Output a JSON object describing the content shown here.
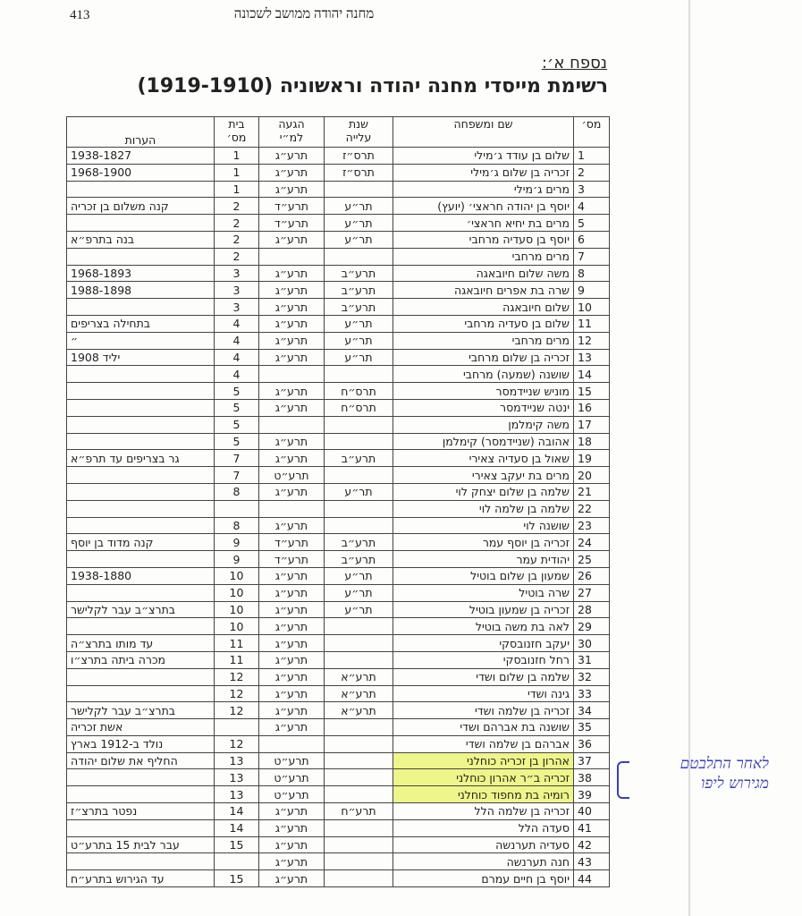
{
  "page_number": "413",
  "running_header": "מחנה יהודה ממושב לשכונה",
  "appendix_label": "נספח א׳:",
  "title": "רשימת מייסדי מחנה יהודה וראשוניה (1919-1910)",
  "table": {
    "headers": {
      "num": "מס׳",
      "name": "שם ומשפחה",
      "aliya_l1": "שנת",
      "aliya_l2": "עלייה",
      "arrival_l1": "הגעה",
      "arrival_l2": "למ״י",
      "house_l1": "בית",
      "house_l2": "מס׳",
      "notes": "הערות"
    },
    "rows": [
      {
        "num": "1",
        "name": "שלום בן עודד ג׳מילי",
        "aliya": "תרס״ז",
        "arrival": "תרע״ג",
        "house": "1",
        "notes": "1938-1827"
      },
      {
        "num": "2",
        "name": "זכריה בן שלום ג׳מילי",
        "aliya": "תרס״ז",
        "arrival": "תרע״ג",
        "house": "1",
        "notes": "1968-1900"
      },
      {
        "num": "3",
        "name": "מרים ג׳מילי",
        "aliya": "",
        "arrival": "תרע״ג",
        "house": "1",
        "notes": ""
      },
      {
        "num": "4",
        "name": "יוסף בן יהודה חראצי׳ (יועץ)",
        "aliya": "תר״ע",
        "arrival": "תרע״ד",
        "house": "2",
        "notes": "קנה משלום בן זכריה"
      },
      {
        "num": "5",
        "name": "מרים בת יחיא חראצי׳",
        "aliya": "תר״ע",
        "arrival": "תרע״ד",
        "house": "2",
        "notes": ""
      },
      {
        "num": "6",
        "name": "יוסף בן סעדיה מרחבי",
        "aliya": "תר״ע",
        "arrival": "תרע״ג",
        "house": "2",
        "notes": "בנה בתרפ״א"
      },
      {
        "num": "7",
        "name": "מרים מרחבי",
        "aliya": "",
        "arrival": "",
        "house": "2",
        "notes": ""
      },
      {
        "num": "8",
        "name": "משה שלום חיובאגה",
        "aliya": "תרע״ב",
        "arrival": "תרע״ג",
        "house": "3",
        "notes": "1968-1893"
      },
      {
        "num": "9",
        "name": "שרה בת אפרים חיובאגה",
        "aliya": "תרע״ב",
        "arrival": "תרע״ג",
        "house": "3",
        "notes": "1988-1898"
      },
      {
        "num": "10",
        "name": "שלום חיובאגה",
        "aliya": "תרע״ב",
        "arrival": "תרע״ג",
        "house": "3",
        "notes": ""
      },
      {
        "num": "11",
        "name": "שלום בן סעדיה מרחבי",
        "aliya": "תר״ע",
        "arrival": "תרע״ג",
        "house": "4",
        "notes": "בתחילה בצריפים"
      },
      {
        "num": "12",
        "name": "מרים מרחבי",
        "aliya": "תר״ע",
        "arrival": "תרע״ג",
        "house": "4",
        "notes": "״"
      },
      {
        "num": "13",
        "name": "זכריה בן שלום מרחבי",
        "aliya": "תר״ע",
        "arrival": "תרע״ג",
        "house": "4",
        "notes": "יליד 1908"
      },
      {
        "num": "14",
        "name": "שושנה (שמעה) מרחבי",
        "aliya": "",
        "arrival": "",
        "house": "4",
        "notes": ""
      },
      {
        "num": "15",
        "name": "מוניש שניידמסר",
        "aliya": "תרס״ח",
        "arrival": "תרע״ג",
        "house": "5",
        "notes": ""
      },
      {
        "num": "16",
        "name": "ינטה שניידמסר",
        "aliya": "תרס״ח",
        "arrival": "תרע״ג",
        "house": "5",
        "notes": ""
      },
      {
        "num": "17",
        "name": "משה קימלמן",
        "aliya": "",
        "arrival": "",
        "house": "5",
        "notes": ""
      },
      {
        "num": "18",
        "name": "אהובה (שניידמסר) קימלמן",
        "aliya": "",
        "arrival": "תרע״ג",
        "house": "5",
        "notes": ""
      },
      {
        "num": "19",
        "name": "שאול בן סעדיה צאירי",
        "aliya": "תרע״ב",
        "arrival": "תרע״ג",
        "house": "7",
        "notes": "גר בצריפים עד תרפ״א"
      },
      {
        "num": "20",
        "name": "מרים בת יעקב צאירי",
        "aliya": "",
        "arrival": "תרע״ט",
        "house": "7",
        "notes": ""
      },
      {
        "num": "21",
        "name": "שלמה בן שלום יצחק לוי",
        "aliya": "תר״ע",
        "arrival": "תרע״ג",
        "house": "8",
        "notes": ""
      },
      {
        "num": "22",
        "name": "שלמה בן שלמה לוי",
        "aliya": "",
        "arrival": "",
        "house": "",
        "notes": ""
      },
      {
        "num": "23",
        "name": "שושנה לוי",
        "aliya": "",
        "arrival": "תרע״ג",
        "house": "8",
        "notes": ""
      },
      {
        "num": "24",
        "name": "זכריה בן יוסף עמר",
        "aliya": "תרע״ב",
        "arrival": "תרע״ד",
        "house": "9",
        "notes": "קנה מדוד בן יוסף"
      },
      {
        "num": "25",
        "name": "יהודית עמר",
        "aliya": "תרע״ב",
        "arrival": "תרע״ד",
        "house": "9",
        "notes": ""
      },
      {
        "num": "26",
        "name": "שמעון בן שלום בוטיל",
        "aliya": "תר״ע",
        "arrival": "תרע״ג",
        "house": "10",
        "notes": "1938-1880"
      },
      {
        "num": "27",
        "name": "שרה בוטיל",
        "aliya": "תר״ע",
        "arrival": "תרע״ג",
        "house": "10",
        "notes": ""
      },
      {
        "num": "28",
        "name": "זכריה בן שמעון בוטיל",
        "aliya": "תר״ע",
        "arrival": "תרע״ג",
        "house": "10",
        "notes": "בתרצ״ב עבר לקלישר"
      },
      {
        "num": "29",
        "name": "לאה בת משה בוטיל",
        "aliya": "",
        "arrival": "תרע״ג",
        "house": "10",
        "notes": ""
      },
      {
        "num": "30",
        "name": "יעקב חזנובסקי",
        "aliya": "",
        "arrival": "תרע״ג",
        "house": "11",
        "notes": "עד מותו בתרצ״ה"
      },
      {
        "num": "31",
        "name": "רחל חזנובסקי",
        "aliya": "",
        "arrival": "תרע״ג",
        "house": "11",
        "notes": "מכרה ביתה בתרצ״ו"
      },
      {
        "num": "32",
        "name": "שלמה בן שלום ושדי",
        "aliya": "תרע״א",
        "arrival": "תרע״ג",
        "house": "12",
        "notes": ""
      },
      {
        "num": "33",
        "name": "גינה ושדי",
        "aliya": "תרע״א",
        "arrival": "תרע״ג",
        "house": "12",
        "notes": ""
      },
      {
        "num": "34",
        "name": "זכריה בן שלמה ושדי",
        "aliya": "תרע״א",
        "arrival": "תרע״ג",
        "house": "12",
        "notes": "בתרצ״ב עבר לקלישר"
      },
      {
        "num": "35",
        "name": "שושנה בת אברהם ושדי",
        "aliya": "",
        "arrival": "תרע״ג",
        "house": "",
        "notes": "אשת זכריה"
      },
      {
        "num": "36",
        "name": "אברהם בן שלמה ושדי",
        "aliya": "",
        "arrival": "",
        "house": "12",
        "notes": "נולד ב-1912 בארץ"
      },
      {
        "num": "37",
        "name": "אהרון בן זכריה כוחלני",
        "aliya": "",
        "arrival": "תרע״ט",
        "house": "13",
        "notes": "החליף את שלום יהודה",
        "highlight": true
      },
      {
        "num": "38",
        "name": "זכריה ב״ר אהרון כוחלני",
        "aliya": "",
        "arrival": "תרע״ט",
        "house": "13",
        "notes": "",
        "highlight": true
      },
      {
        "num": "39",
        "name": "רומיה בת מחפוד כוחלני",
        "aliya": "",
        "arrival": "תרע״ט",
        "house": "13",
        "notes": "",
        "highlight": true
      },
      {
        "num": "40",
        "name": "זכריה בן שלמה הלל",
        "aliya": "תרע״ח",
        "arrival": "תרע״ג",
        "house": "14",
        "notes": "נפטר בתרצ״ז"
      },
      {
        "num": "41",
        "name": "סעדה הלל",
        "aliya": "",
        "arrival": "תרע״ג",
        "house": "14",
        "notes": ""
      },
      {
        "num": "42",
        "name": "סעדיה תערנשה",
        "aliya": "",
        "arrival": "תרע״ג",
        "house": "15",
        "notes": "עבר לבית 15 בתרע״ט"
      },
      {
        "num": "43",
        "name": "חנה תערנשה",
        "aliya": "",
        "arrival": "תרע״ג",
        "house": "",
        "notes": ""
      },
      {
        "num": "44",
        "name": "יוסף בן חיים עמרם",
        "aliya": "",
        "arrival": "תרע״ג",
        "house": "15",
        "notes": "עד הגירוש בתרע״ח"
      }
    ]
  },
  "handwritten_note": {
    "line1": "לאחר התלבטם",
    "line2": "מגירוש ליפו"
  },
  "colors": {
    "highlight": "#eef58a",
    "ink": "#3a3fb8"
  }
}
